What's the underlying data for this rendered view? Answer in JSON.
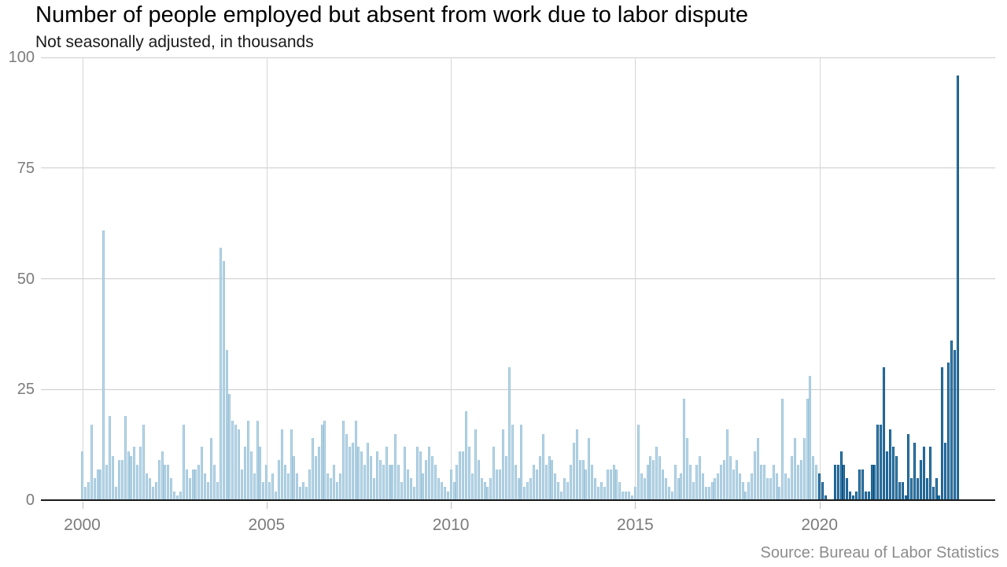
{
  "header": {
    "title": "Number of people employed but absent from work due to labor dispute",
    "subtitle": "Not seasonally adjusted, in thousands"
  },
  "footer": {
    "source": "Source: Bureau of Labor Statistics"
  },
  "chart_data": {
    "type": "bar",
    "title": "Number of people employed but absent from work due to labor dispute",
    "subtitle": "Not seasonally adjusted, in thousands",
    "xlabel": "",
    "ylabel": "",
    "unit": "thousands of people",
    "frequency": "monthly",
    "start_month": "2000-01",
    "end_month": "2023-10",
    "ylim": [
      0,
      100
    ],
    "y_ticks": [
      0,
      25,
      50,
      75,
      100
    ],
    "x_ticks": [
      2000,
      2005,
      2010,
      2015,
      2020
    ],
    "grid": true,
    "legend": "none",
    "colors": {
      "bars_pre_2020": "#b9d9ea",
      "bars_2020_onward": "#3286bd",
      "gridline": "#cccccc",
      "axis": "#1a1a1a",
      "tick_label": "#7c7c7c",
      "source_text": "#8c8c8c"
    },
    "highlight_from_month": "2020-01",
    "values_by_year": {
      "2000": [
        11,
        3,
        4,
        17,
        5,
        7,
        7,
        61,
        8,
        19,
        10,
        3
      ],
      "2001": [
        9,
        9,
        19,
        11,
        10,
        12,
        8,
        12,
        17,
        6,
        5,
        3
      ],
      "2002": [
        4,
        9,
        11,
        8,
        8,
        5,
        2,
        1,
        2,
        17,
        7,
        5
      ],
      "2003": [
        7,
        7,
        8,
        12,
        6,
        4,
        14,
        8,
        4,
        57,
        54,
        34
      ],
      "2004": [
        24,
        18,
        17,
        16,
        7,
        12,
        18,
        11,
        6,
        18,
        12,
        4
      ],
      "2005": [
        8,
        4,
        6,
        2,
        9,
        16,
        8,
        6,
        16,
        10,
        6,
        3
      ],
      "2006": [
        4,
        3,
        7,
        14,
        10,
        12,
        17,
        18,
        6,
        5,
        8,
        4
      ],
      "2007": [
        6,
        18,
        15,
        12,
        13,
        18,
        12,
        11,
        8,
        13,
        10,
        5
      ],
      "2008": [
        11,
        9,
        8,
        12,
        8,
        8,
        15,
        8,
        4,
        12,
        7,
        5
      ],
      "2009": [
        3,
        12,
        11,
        6,
        9,
        12,
        10,
        8,
        5,
        4,
        3,
        2
      ],
      "2010": [
        7,
        4,
        8,
        11,
        11,
        20,
        12,
        6,
        16,
        9,
        5,
        4
      ],
      "2011": [
        3,
        5,
        12,
        7,
        7,
        16,
        10,
        30,
        17,
        8,
        5,
        17
      ],
      "2012": [
        3,
        4,
        5,
        8,
        7,
        10,
        15,
        8,
        10,
        9,
        6,
        4
      ],
      "2013": [
        2,
        5,
        4,
        8,
        13,
        16,
        9,
        9,
        7,
        14,
        8,
        5
      ],
      "2014": [
        3,
        4,
        3,
        7,
        7,
        8,
        7,
        4,
        2,
        2,
        2,
        1
      ],
      "2015": [
        3,
        17,
        6,
        5,
        8,
        10,
        9,
        12,
        10,
        7,
        5,
        3
      ],
      "2016": [
        2,
        8,
        5,
        6,
        23,
        14,
        8,
        4,
        8,
        10,
        6,
        3
      ],
      "2017": [
        3,
        4,
        5,
        6,
        8,
        9,
        16,
        10,
        7,
        9,
        6,
        4
      ],
      "2018": [
        2,
        4,
        6,
        11,
        14,
        8,
        8,
        5,
        5,
        8,
        6,
        3
      ],
      "2019": [
        23,
        6,
        5,
        10,
        14,
        8,
        9,
        14,
        23,
        28,
        10,
        8
      ],
      "2020": [
        6,
        4,
        1,
        0,
        0,
        8,
        8,
        11,
        8,
        5,
        2,
        1
      ],
      "2021": [
        2,
        7,
        7,
        2,
        2,
        8,
        8,
        17,
        17,
        30,
        11,
        16
      ],
      "2022": [
        12,
        10,
        4,
        4,
        1,
        15,
        5,
        13,
        5,
        9,
        12,
        5
      ],
      "2023": [
        12,
        3,
        5,
        1,
        30,
        13,
        31,
        36,
        34,
        96
      ]
    }
  }
}
